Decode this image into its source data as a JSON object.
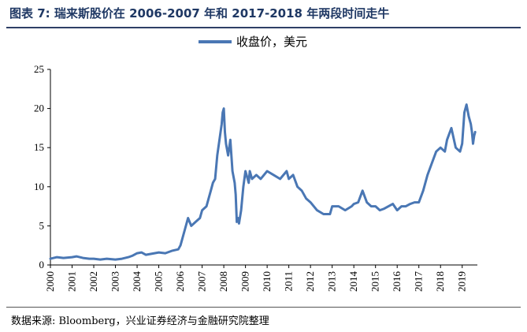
{
  "figure": {
    "title": "图表 7: 瑞来斯股价在 2006-2007 年和 2017-2018 年两段时间走牛",
    "source": "数据来源: Bloomberg，兴业证券经济与金融研究院整理"
  },
  "chart_data": {
    "type": "line",
    "title": "",
    "xlabel": "",
    "ylabel": "",
    "ylim": [
      0,
      25
    ],
    "yticks": [
      "0",
      "5",
      "10",
      "15",
      "20",
      "25"
    ],
    "xlim": [
      2000,
      2019.7
    ],
    "xticks": [
      "2000",
      "2001",
      "2002",
      "2003",
      "2004",
      "2005",
      "2006",
      "2007",
      "2008",
      "2009",
      "2010",
      "2011",
      "2012",
      "2013",
      "2014",
      "2015",
      "2016",
      "2017",
      "2018",
      "2019"
    ],
    "legend": "top-center",
    "series": [
      {
        "name": "收盘价，美元",
        "color": "#4a77b4",
        "x": [
          2000.0,
          2000.3,
          2000.6,
          2001.0,
          2001.2,
          2001.5,
          2001.8,
          2002.0,
          2002.3,
          2002.6,
          2003.0,
          2003.3,
          2003.6,
          2003.8,
          2004.0,
          2004.2,
          2004.4,
          2004.6,
          2004.8,
          2005.0,
          2005.3,
          2005.6,
          2005.9,
          2006.0,
          2006.2,
          2006.35,
          2006.5,
          2006.7,
          2006.9,
          2007.0,
          2007.2,
          2007.4,
          2007.5,
          2007.6,
          2007.7,
          2007.8,
          2007.9,
          2007.95,
          2008.0,
          2008.05,
          2008.1,
          2008.2,
          2008.3,
          2008.4,
          2008.5,
          2008.55,
          2008.6,
          2008.65,
          2008.7,
          2008.8,
          2008.9,
          2009.0,
          2009.1,
          2009.15,
          2009.2,
          2009.3,
          2009.5,
          2009.7,
          2010.0,
          2010.3,
          2010.6,
          2010.9,
          2011.0,
          2011.2,
          2011.4,
          2011.6,
          2011.8,
          2012.0,
          2012.3,
          2012.6,
          2012.9,
          2013.0,
          2013.3,
          2013.6,
          2013.9,
          2014.0,
          2014.2,
          2014.4,
          2014.6,
          2014.8,
          2015.0,
          2015.2,
          2015.4,
          2015.6,
          2015.8,
          2016.0,
          2016.2,
          2016.4,
          2016.6,
          2016.8,
          2017.0,
          2017.2,
          2017.4,
          2017.6,
          2017.8,
          2018.0,
          2018.2,
          2018.3,
          2018.5,
          2018.7,
          2018.9,
          2019.0,
          2019.1,
          2019.2,
          2019.3,
          2019.4,
          2019.45,
          2019.5,
          2019.55,
          2019.6
        ],
        "y": [
          0.8,
          1.0,
          0.9,
          1.0,
          1.1,
          0.9,
          0.8,
          0.8,
          0.7,
          0.8,
          0.7,
          0.8,
          1.0,
          1.2,
          1.5,
          1.6,
          1.3,
          1.4,
          1.5,
          1.6,
          1.5,
          1.8,
          2.0,
          2.5,
          4.5,
          6.0,
          5.0,
          5.5,
          6.0,
          7.0,
          7.5,
          9.5,
          10.5,
          11.0,
          14.0,
          16.0,
          18.0,
          19.5,
          20.0,
          17.0,
          15.5,
          14.0,
          16.0,
          12.0,
          10.5,
          9.0,
          5.5,
          6.0,
          5.3,
          7.0,
          10.0,
          12.0,
          11.0,
          10.5,
          12.0,
          11.0,
          11.5,
          11.0,
          12.0,
          11.5,
          11.0,
          12.0,
          11.0,
          11.5,
          10.0,
          9.5,
          8.5,
          8.0,
          7.0,
          6.5,
          6.5,
          7.5,
          7.5,
          7.0,
          7.5,
          7.8,
          8.0,
          9.5,
          8.0,
          7.5,
          7.5,
          7.0,
          7.2,
          7.5,
          7.8,
          7.0,
          7.5,
          7.5,
          7.8,
          8.0,
          8.0,
          9.5,
          11.5,
          13.0,
          14.5,
          15.0,
          14.5,
          16.0,
          17.5,
          15.0,
          14.5,
          15.5,
          19.5,
          20.5,
          19.0,
          18.0,
          17.0,
          15.5,
          16.5,
          17.0
        ]
      }
    ]
  }
}
